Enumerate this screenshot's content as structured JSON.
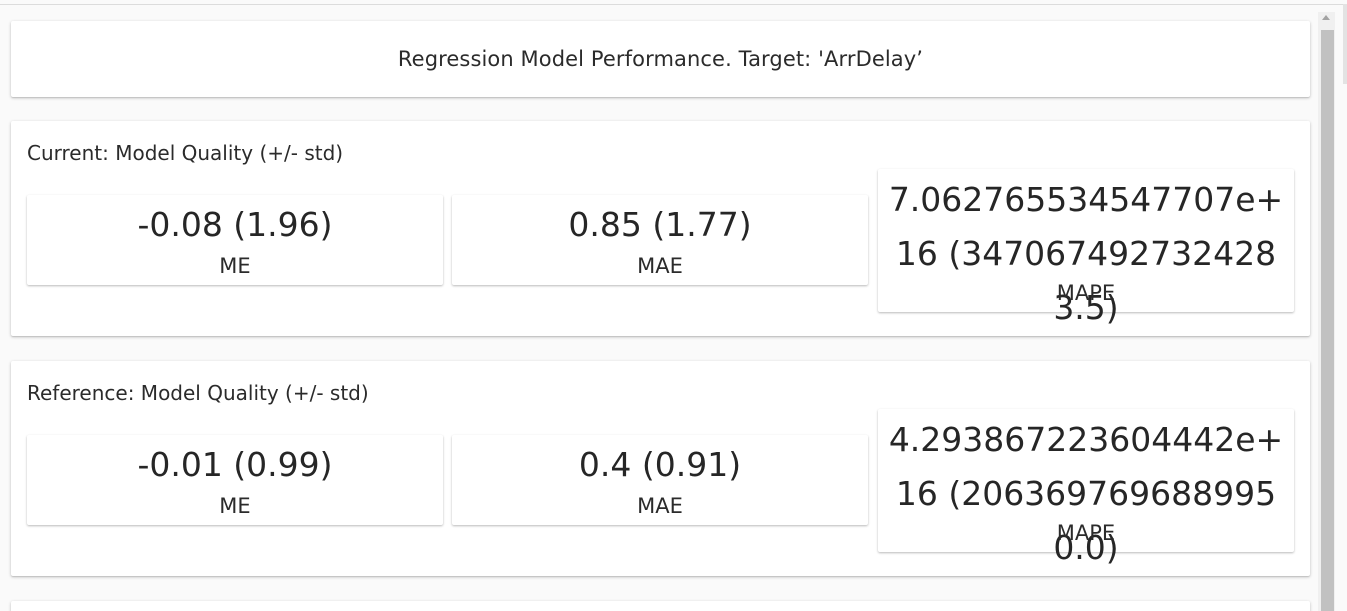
{
  "report": {
    "title": "Regression Model Performance. Target: 'ArrDelay’"
  },
  "sections": [
    {
      "title": "Current: Model Quality (+/- std)",
      "metrics": [
        {
          "value": "-0.08 (1.96)",
          "label": "ME"
        },
        {
          "value": "0.85 (1.77)",
          "label": "MAE"
        },
        {
          "value": "7.062765534547707e+16 (3470674927324283.5)",
          "label": "MAPE"
        }
      ]
    },
    {
      "title": "Reference: Model Quality (+/- std)",
      "metrics": [
        {
          "value": "-0.01 (0.99)",
          "label": "ME"
        },
        {
          "value": "0.4 (0.91)",
          "label": "MAE"
        },
        {
          "value": "4.293867223604442e+16 (2063697696889950.0)",
          "label": "MAPE"
        }
      ]
    }
  ]
}
